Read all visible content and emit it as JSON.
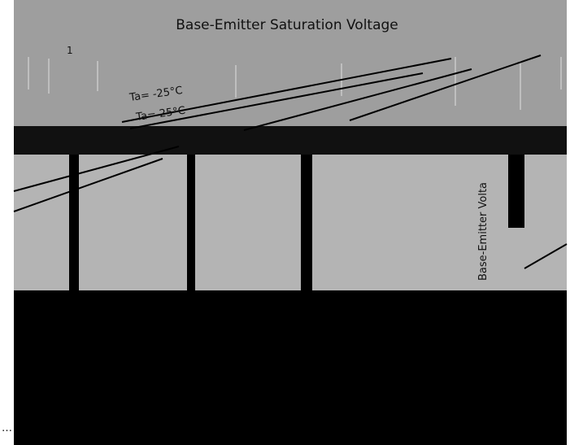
{
  "title": "Base-Emitter Saturation Voltage",
  "curve_labels": [
    "Ta= -25°C",
    "Ta= 25°C"
  ],
  "axis_fragment": "1",
  "axis_label": "Base-Emitter Volta",
  "ellipsis": "…"
}
